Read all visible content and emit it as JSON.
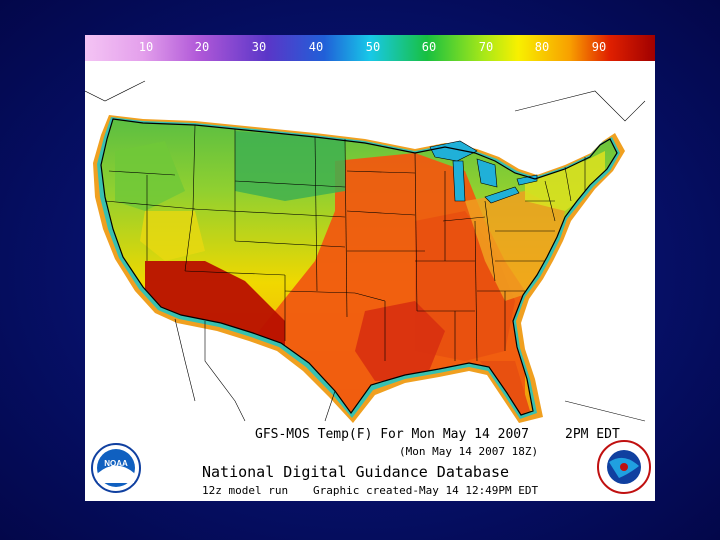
{
  "colorbar": {
    "ticks": [
      "10",
      "20",
      "30",
      "40",
      "50",
      "60",
      "70",
      "80",
      "90"
    ],
    "colors": [
      "#f0b0f0",
      "#d070e0",
      "#8040c0",
      "#3050d0",
      "#20c8e0",
      "#20c040",
      "#f0f000",
      "#f09000",
      "#b00000"
    ]
  },
  "caption": {
    "title": "GFS-MOS Temp(F) For Mon May 14 2007",
    "valid_time": "2PM EDT",
    "sub_time": "(Mon May 14 2007 18Z)",
    "database": "National Digital Guidance Database",
    "model_run": "12z model run",
    "created": "Graphic created-May 14 12:49PM EDT"
  },
  "logos": {
    "noaa": "NOAA",
    "nws": "NATIONAL WEATHER SERVICE"
  },
  "colors": {
    "background": "#061068",
    "cool_north": "#50b040",
    "warm_south": "#e04010",
    "hot_southwest": "#b01000",
    "lakes": "#20b0d8",
    "coast_band": "#f0a020"
  }
}
